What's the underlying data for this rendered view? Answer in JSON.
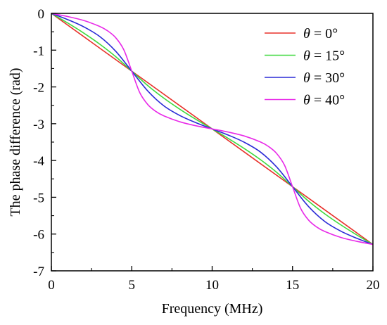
{
  "chart_data": {
    "type": "line",
    "title": "",
    "xlabel": "Frequency (MHz)",
    "ylabel": "The phase difference (rad)",
    "xlim": [
      0,
      20
    ],
    "ylim": [
      -7,
      0
    ],
    "x_ticks": [
      0,
      5,
      10,
      15,
      20
    ],
    "y_ticks": [
      0,
      -1,
      -2,
      -3,
      -4,
      -5,
      -6,
      -7
    ],
    "x_tick_labels": [
      "0",
      "5",
      "10",
      "15",
      "20"
    ],
    "y_tick_labels": [
      "0",
      "-1",
      "-2",
      "-3",
      "-4",
      "-5",
      "-6",
      "-7"
    ],
    "grid": false,
    "legend_position": "top-right",
    "series": [
      {
        "name": "θ = 0°",
        "legend_symbol": "θ",
        "legend_text": " = 0°",
        "color": "#e8302a",
        "x": [
          0,
          5,
          10,
          15,
          20
        ],
        "y": [
          0,
          -1.571,
          -3.142,
          -4.712,
          -6.283
        ]
      },
      {
        "name": "θ = 15°",
        "legend_symbol": "θ",
        "legend_text": " = 15°",
        "color": "#3fd93f",
        "x": [
          0,
          1,
          2,
          3,
          4,
          5,
          6,
          7,
          8,
          9,
          10,
          11,
          12,
          13,
          14,
          15,
          16,
          17,
          18,
          19,
          20
        ],
        "y": [
          0,
          -0.258,
          -0.532,
          -0.834,
          -1.176,
          -1.571,
          -1.965,
          -2.307,
          -2.609,
          -2.884,
          -3.142,
          -3.4,
          -3.675,
          -3.976,
          -4.318,
          -4.712,
          -5.107,
          -5.449,
          -5.75,
          -6.025,
          -6.283
        ]
      },
      {
        "name": "θ = 30°",
        "legend_symbol": "θ",
        "legend_text": " = 30°",
        "color": "#2a2ad6",
        "x": [
          0,
          1,
          2,
          3,
          4,
          5,
          6,
          7,
          8,
          9,
          10,
          11,
          12,
          13,
          14,
          15,
          16,
          17,
          18,
          19,
          20
        ],
        "y": [
          0,
          -0.167,
          -0.363,
          -0.627,
          -1.029,
          -1.571,
          -2.112,
          -2.515,
          -2.779,
          -2.974,
          -3.142,
          -3.309,
          -3.505,
          -3.769,
          -4.171,
          -4.712,
          -5.254,
          -5.656,
          -5.92,
          -6.116,
          -6.283
        ]
      },
      {
        "name": "θ = 40°",
        "legend_symbol": "θ",
        "legend_text": " = 40°",
        "color": "#e82ae8",
        "x": [
          0,
          1,
          2,
          3,
          3.5,
          4,
          4.5,
          5,
          5.5,
          6,
          6.5,
          7,
          8,
          9,
          10,
          11,
          12,
          13,
          13.5,
          14,
          14.5,
          15,
          15.5,
          16,
          16.5,
          17,
          18,
          19,
          20
        ],
        "y": [
          0,
          -0.085,
          -0.192,
          -0.354,
          -0.475,
          -0.661,
          -0.985,
          -1.571,
          -2.157,
          -2.48,
          -2.667,
          -2.788,
          -2.949,
          -3.057,
          -3.142,
          -3.227,
          -3.334,
          -3.496,
          -3.617,
          -3.803,
          -4.127,
          -4.712,
          -5.298,
          -5.622,
          -5.808,
          -5.929,
          -6.091,
          -6.198,
          -6.283
        ]
      }
    ]
  }
}
